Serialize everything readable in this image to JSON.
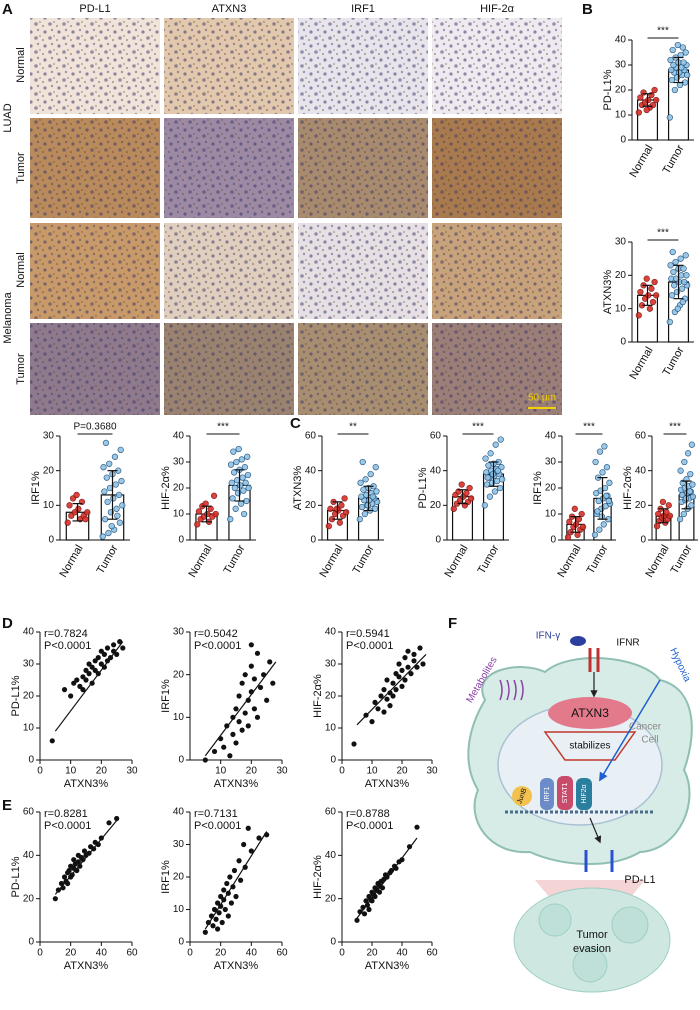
{
  "panel_labels": [
    "A",
    "B",
    "C",
    "D",
    "E",
    "F"
  ],
  "histology": {
    "columns": [
      "PD-L1",
      "ATXN3",
      "IRF1",
      "HIF-2α"
    ],
    "groups": [
      {
        "name": "LUAD",
        "rows": [
          "Normal",
          "Tumor"
        ]
      },
      {
        "name": "Melanoma",
        "rows": [
          "Normal",
          "Tumor"
        ]
      }
    ],
    "scale_bar": "50 μm"
  },
  "chart_data": [
    {
      "type": "bar",
      "ylabel": "PD-L1%",
      "categories": [
        "Normal",
        "Tumor"
      ],
      "values": [
        16,
        28
      ],
      "errors": [
        2.5,
        5
      ],
      "colors": [
        "#d73027",
        "#8ec3e6"
      ],
      "significance": "***",
      "ylim": [
        0,
        40
      ],
      "yticks": [
        0,
        10,
        20,
        30,
        40
      ],
      "points": [
        [
          11,
          13,
          14,
          14,
          15,
          16,
          16,
          17,
          18,
          19,
          20,
          12
        ],
        [
          9,
          20,
          22,
          23,
          24,
          25,
          26,
          26,
          27,
          27,
          28,
          28,
          29,
          29,
          30,
          30,
          31,
          31,
          32,
          33,
          34,
          35,
          36,
          38,
          37
        ]
      ]
    },
    {
      "type": "bar",
      "ylabel": "ATXN3%",
      "categories": [
        "Normal",
        "Tumor"
      ],
      "values": [
        14,
        18
      ],
      "errors": [
        3,
        5
      ],
      "colors": [
        "#d73027",
        "#8ec3e6"
      ],
      "significance": "***",
      "ylim": [
        0,
        30
      ],
      "yticks": [
        0,
        10,
        20,
        30
      ],
      "points": [
        [
          8,
          10,
          11,
          12,
          13,
          14,
          14,
          15,
          16,
          17,
          18,
          19
        ],
        [
          6,
          9,
          11,
          13,
          14,
          15,
          16,
          17,
          17,
          18,
          18,
          19,
          19,
          20,
          20,
          21,
          22,
          22,
          23,
          24,
          25,
          26,
          27,
          10,
          12
        ]
      ]
    },
    {
      "type": "bar",
      "ylabel": "IRF1%",
      "categories": [
        "Normal",
        "Tumor"
      ],
      "values": [
        8,
        13
      ],
      "errors": [
        2.5,
        7
      ],
      "colors": [
        "#d73027",
        "#8ec3e6"
      ],
      "significance": "P=0.3680",
      "ylim": [
        0,
        30
      ],
      "yticks": [
        0,
        10,
        20,
        30
      ],
      "points": [
        [
          5,
          6,
          7,
          7,
          8,
          8,
          9,
          10,
          11,
          12,
          6,
          13
        ],
        [
          1,
          2,
          3,
          5,
          6,
          8,
          9,
          10,
          11,
          12,
          13,
          14,
          15,
          16,
          17,
          18,
          19,
          20,
          21,
          22,
          24,
          26,
          28,
          4,
          7
        ]
      ]
    },
    {
      "type": "bar",
      "ylabel": "HIF-2α%",
      "categories": [
        "Normal",
        "Tumor"
      ],
      "values": [
        10,
        21
      ],
      "errors": [
        3,
        6
      ],
      "colors": [
        "#d73027",
        "#8ec3e6"
      ],
      "significance": "***",
      "ylim": [
        0,
        40
      ],
      "yticks": [
        0,
        10,
        20,
        30,
        40
      ],
      "points": [
        [
          6,
          7,
          8,
          9,
          9,
          10,
          10,
          11,
          12,
          13,
          17,
          14
        ],
        [
          8,
          12,
          14,
          15,
          16,
          18,
          19,
          20,
          20,
          21,
          22,
          22,
          23,
          24,
          25,
          26,
          27,
          28,
          29,
          30,
          31,
          32,
          34,
          35,
          10
        ]
      ]
    },
    {
      "type": "bar",
      "ylabel": "ATXN3%",
      "categories": [
        "Normal",
        "Tumor"
      ],
      "values": [
        17,
        24
      ],
      "errors": [
        5,
        7
      ],
      "colors": [
        "#d73027",
        "#8ec3e6"
      ],
      "significance": "**",
      "ylim": [
        0,
        60
      ],
      "yticks": [
        0,
        20,
        40,
        60
      ],
      "points": [
        [
          8,
          10,
          12,
          14,
          15,
          16,
          17,
          18,
          20,
          22,
          24,
          18
        ],
        [
          12,
          15,
          17,
          18,
          19,
          20,
          21,
          22,
          23,
          23,
          24,
          25,
          26,
          27,
          28,
          29,
          30,
          31,
          33,
          35,
          38,
          42,
          45,
          20,
          25
        ]
      ]
    },
    {
      "type": "bar",
      "ylabel": "PD-L1%",
      "categories": [
        "Normal",
        "Tumor"
      ],
      "values": [
        25,
        38
      ],
      "errors": [
        4,
        7
      ],
      "colors": [
        "#d73027",
        "#8ec3e6"
      ],
      "significance": "***",
      "ylim": [
        0,
        60
      ],
      "yticks": [
        0,
        20,
        40,
        60
      ],
      "points": [
        [
          18,
          20,
          21,
          22,
          23,
          24,
          25,
          26,
          27,
          28,
          30,
          32
        ],
        [
          20,
          25,
          28,
          30,
          32,
          33,
          34,
          35,
          36,
          37,
          38,
          39,
          40,
          41,
          42,
          43,
          44,
          45,
          47,
          50,
          55,
          58,
          36,
          38,
          40
        ]
      ]
    },
    {
      "type": "bar",
      "ylabel": "IRF1%",
      "categories": [
        "Normal",
        "Tumor"
      ],
      "values": [
        6,
        16
      ],
      "errors": [
        3,
        8
      ],
      "colors": [
        "#d73027",
        "#8ec3e6"
      ],
      "significance": "***",
      "ylim": [
        0,
        40
      ],
      "yticks": [
        0,
        10,
        20,
        30,
        40
      ],
      "points": [
        [
          1,
          2,
          3,
          4,
          5,
          5,
          6,
          7,
          8,
          9,
          10,
          12
        ],
        [
          2,
          4,
          6,
          8,
          10,
          12,
          13,
          14,
          15,
          16,
          17,
          18,
          19,
          20,
          22,
          24,
          26,
          28,
          30,
          34,
          36,
          15,
          11,
          9,
          17
        ]
      ]
    },
    {
      "type": "bar",
      "ylabel": "HIF-2α%",
      "categories": [
        "Normal",
        "Tumor"
      ],
      "values": [
        14,
        26
      ],
      "errors": [
        4,
        8
      ],
      "colors": [
        "#d73027",
        "#8ec3e6"
      ],
      "significance": "***",
      "ylim": [
        0,
        60
      ],
      "yticks": [
        0,
        20,
        40,
        60
      ],
      "points": [
        [
          8,
          10,
          11,
          12,
          13,
          14,
          14,
          15,
          16,
          18,
          20,
          22
        ],
        [
          12,
          15,
          18,
          20,
          22,
          23,
          24,
          25,
          26,
          27,
          28,
          29,
          30,
          31,
          32,
          33,
          35,
          38,
          40,
          45,
          50,
          55,
          26,
          24,
          28
        ]
      ]
    },
    {
      "type": "scatter",
      "xlabel": "ATXN3%",
      "ylabel": "PD-L1%",
      "r_label": "r=0.7824",
      "p_label": "P<0.0001",
      "xlim": [
        0,
        30
      ],
      "xticks": [
        0,
        10,
        20,
        30
      ],
      "ylim": [
        0,
        40
      ],
      "yticks": [
        0,
        10,
        20,
        30,
        40
      ],
      "x": [
        4,
        8,
        10,
        11,
        12,
        13,
        14,
        14,
        15,
        15,
        16,
        16,
        17,
        17,
        18,
        18,
        19,
        19,
        20,
        20,
        21,
        21,
        22,
        22,
        23,
        24,
        24,
        25,
        26,
        27
      ],
      "y": [
        6,
        22,
        20,
        24,
        25,
        23,
        26,
        22,
        28,
        25,
        27,
        30,
        24,
        29,
        28,
        31,
        27,
        32,
        30,
        34,
        29,
        33,
        31,
        35,
        32,
        34,
        36,
        33,
        37,
        35
      ],
      "fit": {
        "x": [
          5,
          27
        ],
        "y": [
          9,
          37
        ]
      }
    },
    {
      "type": "scatter",
      "xlabel": "ATXN3%",
      "ylabel": "IRF1%",
      "r_label": "r=0.5042",
      "p_label": "P<0.0001",
      "xlim": [
        0,
        30
      ],
      "xticks": [
        10,
        20,
        30
      ],
      "ylim": [
        0,
        30
      ],
      "yticks": [
        0,
        10,
        20,
        30
      ],
      "x": [
        5,
        8,
        10,
        11,
        12,
        13,
        14,
        14,
        15,
        15,
        16,
        16,
        17,
        17,
        18,
        18,
        19,
        19,
        20,
        20,
        21,
        21,
        22,
        22,
        23,
        24,
        25,
        26,
        27,
        20
      ],
      "y": [
        0,
        2,
        5,
        3,
        8,
        1,
        10,
        6,
        12,
        4,
        9,
        15,
        7,
        18,
        11,
        20,
        14,
        8,
        16,
        22,
        12,
        19,
        25,
        10,
        17,
        20,
        14,
        23,
        18,
        27
      ],
      "fit": {
        "x": [
          5,
          28
        ],
        "y": [
          1,
          23
        ]
      }
    },
    {
      "type": "scatter",
      "xlabel": "ATXN3%",
      "ylabel": "HIF-2α%",
      "r_label": "r=0.5941",
      "p_label": "P<0.0001",
      "xlim": [
        0,
        30
      ],
      "xticks": [
        0,
        10,
        20,
        30
      ],
      "ylim": [
        0,
        40
      ],
      "yticks": [
        0,
        10,
        20,
        30,
        40
      ],
      "x": [
        4,
        8,
        10,
        11,
        12,
        13,
        14,
        14,
        15,
        15,
        16,
        16,
        17,
        17,
        18,
        18,
        19,
        19,
        20,
        20,
        21,
        21,
        22,
        22,
        23,
        24,
        24,
        25,
        26,
        27
      ],
      "y": [
        5,
        14,
        12,
        18,
        16,
        20,
        15,
        22,
        19,
        25,
        21,
        17,
        24,
        20,
        27,
        22,
        26,
        30,
        23,
        28,
        32,
        25,
        29,
        34,
        27,
        31,
        33,
        29,
        35,
        30
      ],
      "fit": {
        "x": [
          5,
          28
        ],
        "y": [
          11,
          33
        ]
      }
    },
    {
      "type": "scatter",
      "xlabel": "ATXN3%",
      "ylabel": "PD-L1%",
      "r_label": "r=0.8281",
      "p_label": "P<0.0001",
      "xlim": [
        0,
        60
      ],
      "xticks": [
        0,
        20,
        40,
        60
      ],
      "ylim": [
        0,
        60
      ],
      "yticks": [
        0,
        20,
        40,
        60
      ],
      "x": [
        10,
        12,
        14,
        15,
        16,
        17,
        18,
        18,
        19,
        20,
        20,
        21,
        22,
        22,
        23,
        24,
        25,
        25,
        26,
        27,
        28,
        29,
        30,
        32,
        33,
        35,
        36,
        38,
        40,
        45,
        50
      ],
      "y": [
        20,
        24,
        27,
        25,
        30,
        28,
        32,
        27,
        33,
        30,
        35,
        31,
        34,
        38,
        36,
        33,
        37,
        40,
        35,
        39,
        38,
        42,
        40,
        41,
        44,
        43,
        46,
        45,
        48,
        55,
        57
      ],
      "fit": {
        "x": [
          10,
          50
        ],
        "y": [
          22,
          56
        ]
      }
    },
    {
      "type": "scatter",
      "xlabel": "ATXN3%",
      "ylabel": "IRF1%",
      "r_label": "r=0.7131",
      "p_label": "P<0.0001",
      "xlim": [
        0,
        60
      ],
      "xticks": [
        0,
        20,
        40,
        60
      ],
      "ylim": [
        0,
        40
      ],
      "yticks": [
        0,
        10,
        20,
        30,
        40
      ],
      "x": [
        10,
        12,
        14,
        15,
        16,
        17,
        18,
        18,
        19,
        20,
        20,
        21,
        22,
        22,
        23,
        24,
        25,
        25,
        26,
        27,
        28,
        29,
        30,
        32,
        33,
        35,
        36,
        38,
        40,
        45,
        50
      ],
      "y": [
        3,
        6,
        8,
        5,
        10,
        7,
        12,
        4,
        9,
        14,
        11,
        6,
        13,
        16,
        10,
        18,
        8,
        15,
        20,
        12,
        17,
        22,
        14,
        25,
        19,
        30,
        23,
        35,
        28,
        32,
        33
      ],
      "fit": {
        "x": [
          10,
          50
        ],
        "y": [
          4,
          34
        ]
      }
    },
    {
      "type": "scatter",
      "xlabel": "ATXN3%",
      "ylabel": "HIF-2α%",
      "r_label": "r=0.8788",
      "p_label": "P<0.0001",
      "xlim": [
        0,
        60
      ],
      "xticks": [
        0,
        20,
        40,
        60
      ],
      "ylim": [
        0,
        60
      ],
      "yticks": [
        0,
        20,
        40,
        60
      ],
      "x": [
        10,
        12,
        14,
        15,
        16,
        17,
        18,
        18,
        19,
        20,
        20,
        21,
        22,
        22,
        23,
        24,
        25,
        25,
        26,
        27,
        28,
        29,
        30,
        32,
        33,
        35,
        36,
        38,
        40,
        45,
        50
      ],
      "y": [
        10,
        14,
        16,
        13,
        19,
        17,
        21,
        15,
        20,
        23,
        19,
        22,
        25,
        21,
        24,
        27,
        23,
        26,
        28,
        25,
        29,
        31,
        30,
        32,
        33,
        35,
        34,
        37,
        38,
        44,
        53
      ],
      "fit": {
        "x": [
          10,
          50
        ],
        "y": [
          11,
          48
        ]
      }
    }
  ],
  "diagram": {
    "ifn": "IFN-γ",
    "ifnr": "IFNR",
    "metabolites": "Metabolites",
    "hypoxia": "Hypoxia",
    "atxn3": "ATXN3",
    "stabilizes": "stabilizes",
    "cancer_cell": [
      "Cancer",
      "Cell"
    ],
    "junb": "JunB",
    "irf1": "IRF1",
    "stat1": "STAT1",
    "hif": "HIF2α",
    "pdl1": "PD-L1",
    "tumor_evasion": [
      "Tumor",
      "evasion"
    ]
  }
}
